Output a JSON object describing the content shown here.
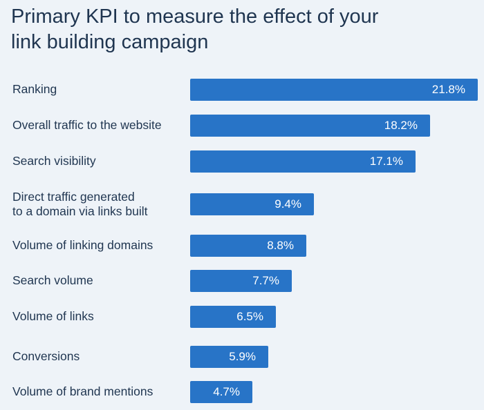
{
  "chart_data": {
    "type": "bar",
    "orientation": "horizontal",
    "title": "Primary KPI to measure the effect of your\nlink building campaign",
    "categories": [
      "Ranking",
      "Overall traffic to the website",
      "Search visibility",
      "Direct traffic generated\nto a domain via links built",
      "Volume of linking domains",
      "Search volume",
      "Volume of links",
      "Conversions",
      "Volume of brand mentions"
    ],
    "values": [
      21.8,
      18.2,
      17.1,
      9.4,
      8.8,
      7.7,
      6.5,
      5.9,
      4.7
    ],
    "value_labels": [
      "21.8%",
      "18.2%",
      "17.1%",
      "9.4%",
      "8.8%",
      "7.7%",
      "6.5%",
      "5.9%",
      "4.7%"
    ],
    "unit": "%",
    "bar_color": "#2874c7",
    "background_color": "#eef3f8",
    "grid": false,
    "legend": "none"
  }
}
